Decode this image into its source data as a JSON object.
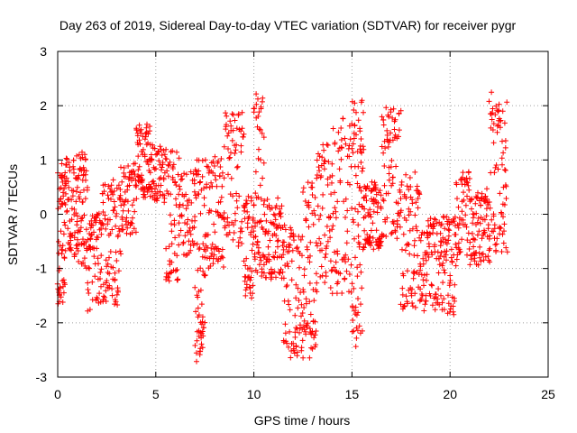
{
  "chart_data": {
    "type": "scatter",
    "title": "Day 263 of 2019, Sidereal Day-to-day VTEC variation (SDTVAR) for receiver pygr",
    "xlabel": "GPS time / hours",
    "ylabel": "SDTVAR / TECUs",
    "xlim": [
      0,
      25
    ],
    "ylim": [
      -3,
      3
    ],
    "x_ticks": [
      0,
      5,
      10,
      15,
      20,
      25
    ],
    "y_ticks": [
      -3,
      -2,
      -1,
      0,
      1,
      2,
      3
    ],
    "grid": true,
    "marker": "+",
    "series": [
      {
        "name": "SDTVAR",
        "color": "#ff0000",
        "clusters": [
          {
            "t0": 0.0,
            "t1": 0.4,
            "v0": -1.7,
            "v1": 1.0,
            "n": 60
          },
          {
            "t0": 0.4,
            "t1": 1.0,
            "v0": -0.8,
            "v1": 1.2,
            "n": 60
          },
          {
            "t0": 1.0,
            "t1": 1.5,
            "v0": -1.1,
            "v1": 1.2,
            "n": 60
          },
          {
            "t0": 1.5,
            "t1": 2.2,
            "v0": -1.8,
            "v1": 0.1,
            "n": 60
          },
          {
            "t0": 2.2,
            "t1": 3.2,
            "v0": -1.8,
            "v1": 0.7,
            "n": 90
          },
          {
            "t0": 3.2,
            "t1": 4.0,
            "v0": -0.4,
            "v1": 1.0,
            "n": 60
          },
          {
            "t0": 4.0,
            "t1": 4.8,
            "v0": 0.3,
            "v1": 1.7,
            "n": 80
          },
          {
            "t0": 4.8,
            "t1": 5.5,
            "v0": 0.2,
            "v1": 1.3,
            "n": 50
          },
          {
            "t0": 5.5,
            "t1": 6.2,
            "v0": -1.4,
            "v1": 1.3,
            "n": 60
          },
          {
            "t0": 6.2,
            "t1": 7.0,
            "v0": -0.8,
            "v1": 0.9,
            "n": 50
          },
          {
            "t0": 7.0,
            "t1": 7.5,
            "v0": -2.8,
            "v1": 1.2,
            "n": 70
          },
          {
            "t0": 7.5,
            "t1": 8.5,
            "v0": -1.1,
            "v1": 1.2,
            "n": 80
          },
          {
            "t0": 8.5,
            "t1": 9.5,
            "v0": -0.6,
            "v1": 1.9,
            "n": 70
          },
          {
            "t0": 9.5,
            "t1": 10.0,
            "v0": -1.6,
            "v1": 0.4,
            "n": 50
          },
          {
            "t0": 10.0,
            "t1": 10.5,
            "v0": -1.2,
            "v1": 2.3,
            "n": 60
          },
          {
            "t0": 10.5,
            "t1": 11.5,
            "v0": -1.2,
            "v1": 0.3,
            "n": 80
          },
          {
            "t0": 11.5,
            "t1": 12.5,
            "v0": -2.7,
            "v1": -0.2,
            "n": 80
          },
          {
            "t0": 12.5,
            "t1": 13.2,
            "v0": -2.7,
            "v1": 0.7,
            "n": 70
          },
          {
            "t0": 13.2,
            "t1": 14.0,
            "v0": -1.5,
            "v1": 1.5,
            "n": 60
          },
          {
            "t0": 14.0,
            "t1": 15.0,
            "v0": -1.5,
            "v1": 1.8,
            "n": 70
          },
          {
            "t0": 15.0,
            "t1": 15.6,
            "v0": -2.5,
            "v1": 2.3,
            "n": 80
          },
          {
            "t0": 15.6,
            "t1": 16.5,
            "v0": -0.7,
            "v1": 0.6,
            "n": 80
          },
          {
            "t0": 16.5,
            "t1": 17.5,
            "v0": -0.5,
            "v1": 2.0,
            "n": 80
          },
          {
            "t0": 17.5,
            "t1": 18.5,
            "v0": -1.9,
            "v1": 0.8,
            "n": 80
          },
          {
            "t0": 18.5,
            "t1": 19.5,
            "v0": -1.8,
            "v1": 0.0,
            "n": 80
          },
          {
            "t0": 19.5,
            "t1": 20.3,
            "v0": -1.9,
            "v1": 0.0,
            "n": 70
          },
          {
            "t0": 20.3,
            "t1": 21.0,
            "v0": -0.9,
            "v1": 0.8,
            "n": 50
          },
          {
            "t0": 21.0,
            "t1": 22.0,
            "v0": -1.0,
            "v1": 0.5,
            "n": 80
          },
          {
            "t0": 22.0,
            "t1": 22.9,
            "v0": -0.8,
            "v1": 2.4,
            "n": 80
          }
        ]
      }
    ]
  }
}
